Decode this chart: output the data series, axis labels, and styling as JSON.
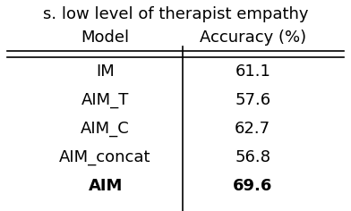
{
  "title": "s. low level of therapist empathy",
  "col1_header": "Model",
  "col2_header": "Accuracy (%)",
  "rows": [
    [
      "IM",
      "61.1",
      false
    ],
    [
      "AIM_T",
      "57.6",
      false
    ],
    [
      "AIM_C",
      "62.7",
      false
    ],
    [
      "AIM_concat",
      "56.8",
      false
    ],
    [
      "AIM",
      "69.6",
      true
    ]
  ],
  "background_color": "#ffffff",
  "text_color": "#000000",
  "title_fontsize": 13,
  "header_fontsize": 13,
  "cell_fontsize": 13,
  "bold_last": true
}
